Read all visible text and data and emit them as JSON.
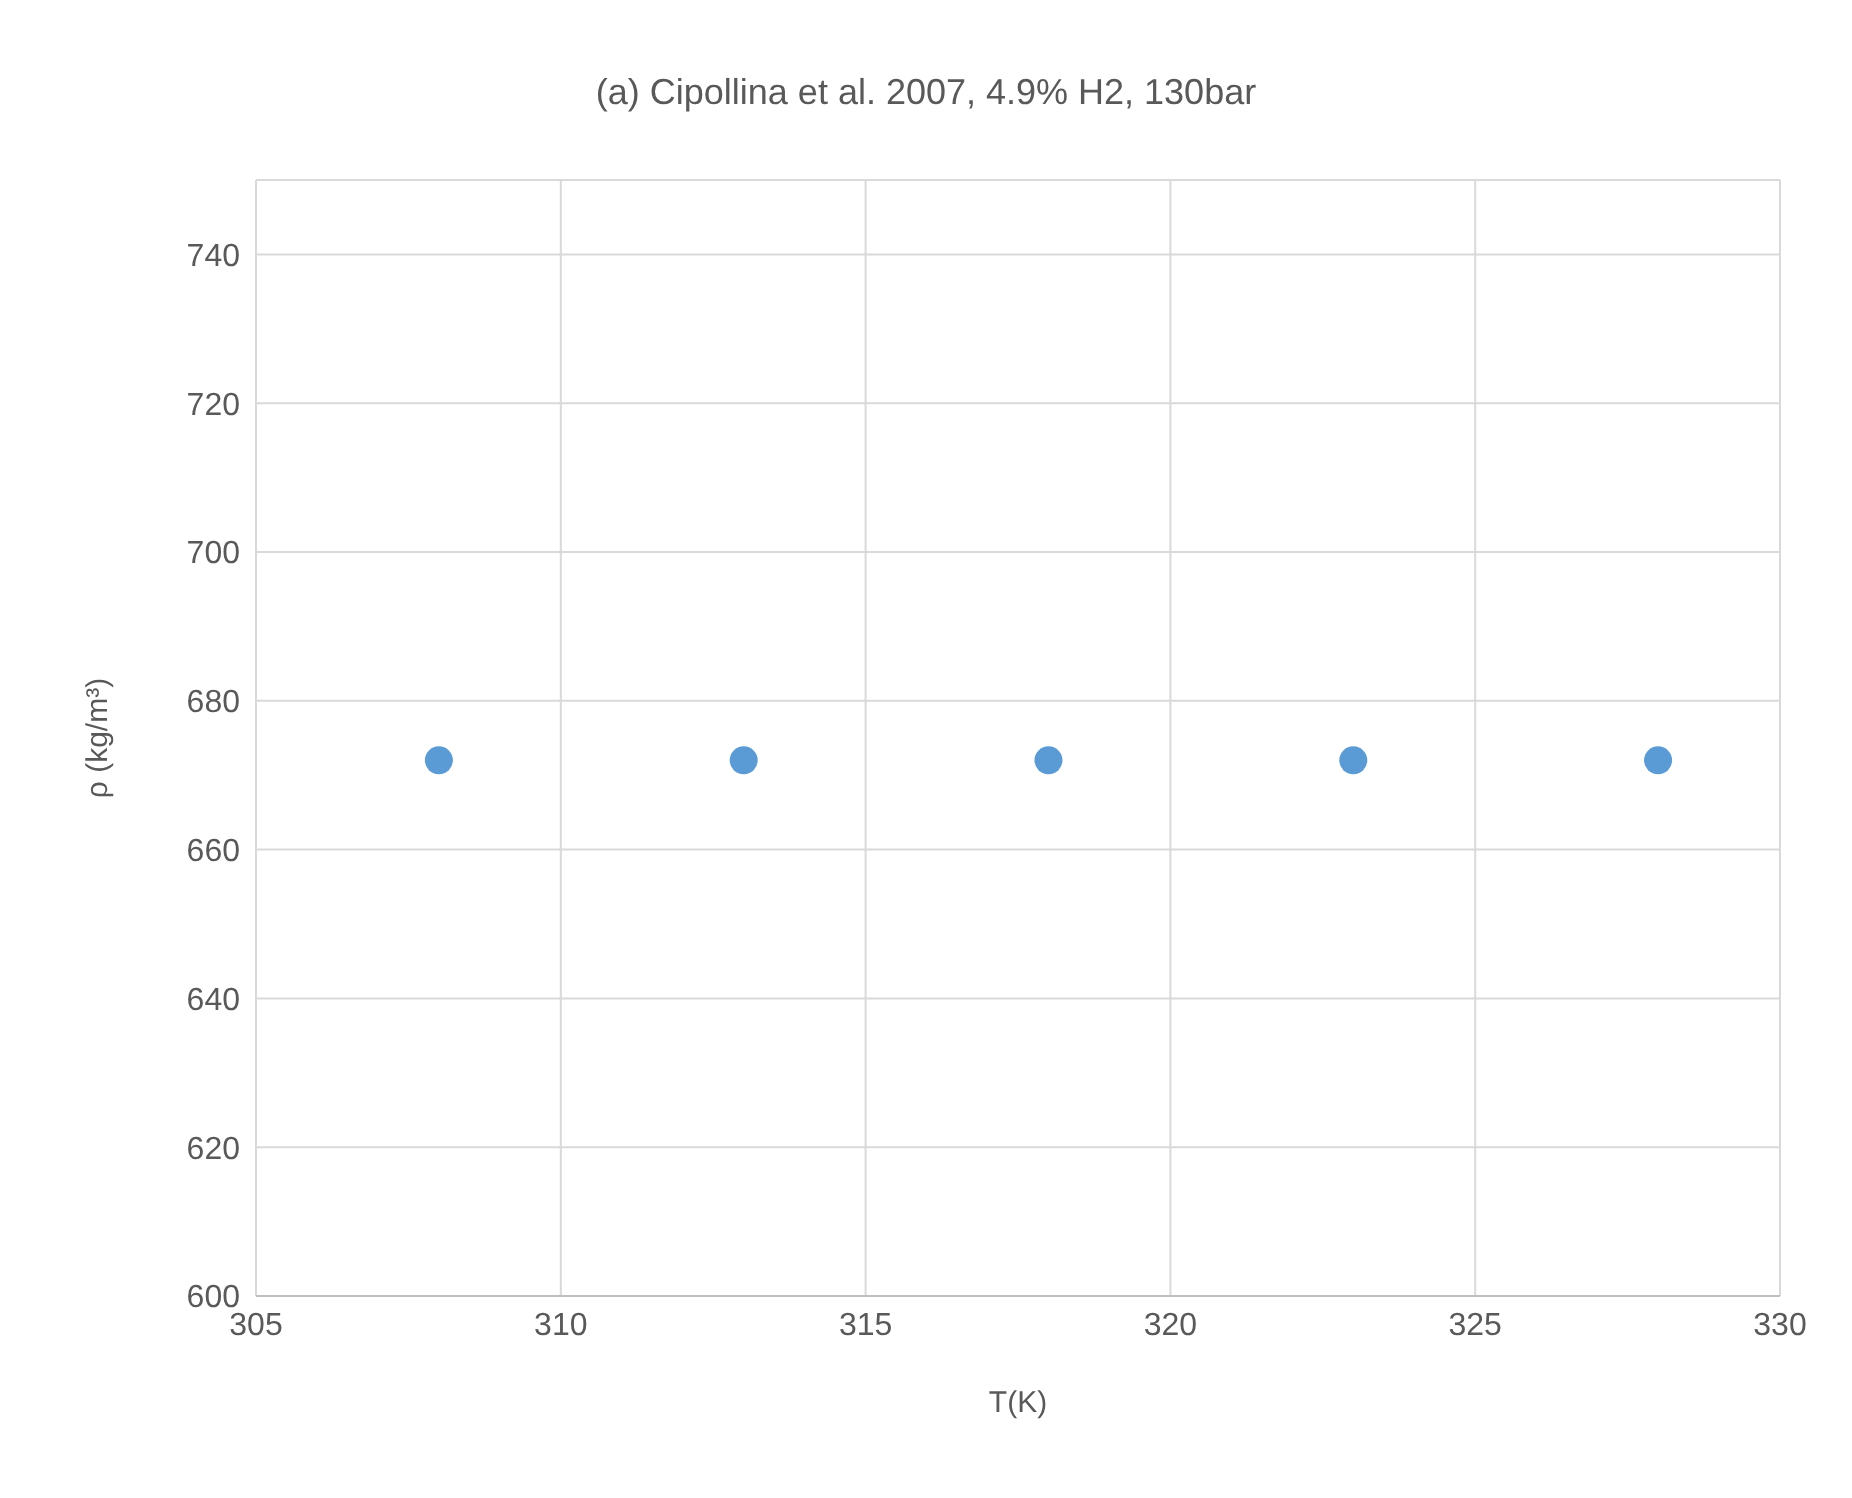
{
  "chart_data": {
    "type": "scatter",
    "title": "(a) Cipollina et al. 2007, 4.9% H2, 130bar",
    "xlabel": "T(K)",
    "ylabel": "ρ (kg/m³)",
    "x": [
      308,
      313,
      318,
      323,
      328
    ],
    "series": [
      {
        "color": "#5b9bd5",
        "values": [
          672,
          672,
          672,
          672,
          672
        ]
      }
    ],
    "xlim": [
      305,
      330
    ],
    "xticks": [
      305,
      310,
      315,
      320,
      325,
      330
    ],
    "ylim": [
      600,
      750
    ],
    "yticks": [
      600,
      620,
      640,
      660,
      680,
      700,
      720,
      740
    ],
    "grid": true,
    "marker": "circle",
    "legend": false
  }
}
